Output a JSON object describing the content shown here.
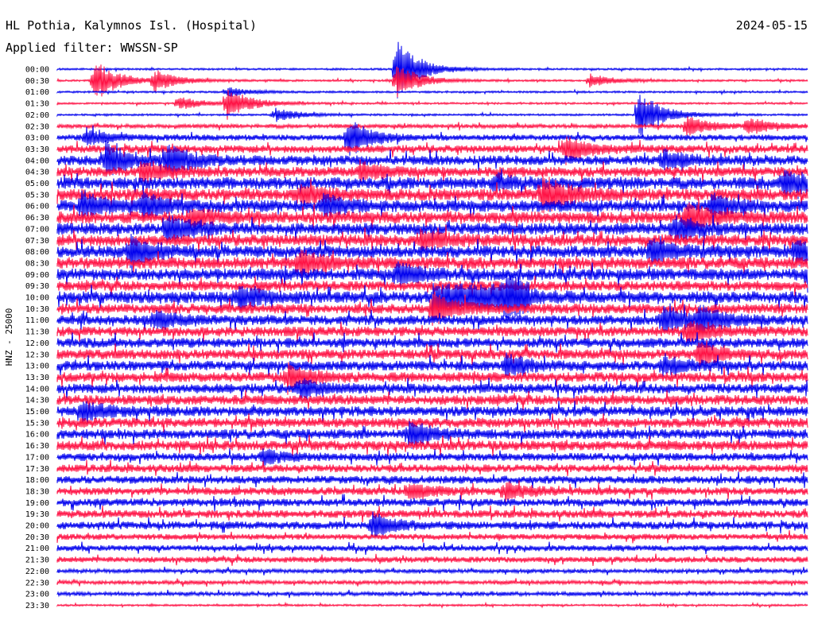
{
  "chart_data": {
    "type": "line",
    "title": "HL Pothia, Kalymnos Isl. (Hospital)",
    "date": "2024-05-15",
    "subtitle": "Applied filter: WWSSN-SP",
    "ylabel": "HNZ - 25000",
    "colors": [
      "#0000ee",
      "#ff1144"
    ],
    "categories": [
      "00:00",
      "00:30",
      "01:00",
      "01:30",
      "02:00",
      "02:30",
      "03:00",
      "03:30",
      "04:00",
      "04:30",
      "05:00",
      "05:30",
      "06:00",
      "06:30",
      "07:00",
      "07:30",
      "08:00",
      "08:30",
      "09:00",
      "09:30",
      "10:00",
      "10:30",
      "11:00",
      "11:30",
      "12:00",
      "12:30",
      "13:00",
      "13:30",
      "14:00",
      "14:30",
      "15:00",
      "15:30",
      "16:00",
      "16:30",
      "17:00",
      "17:30",
      "18:00",
      "18:30",
      "19:00",
      "19:30",
      "20:00",
      "20:30",
      "21:00",
      "21:30",
      "22:00",
      "22:30",
      "23:00",
      "23:30"
    ],
    "noise_level": [
      1,
      1,
      1,
      1,
      1,
      2,
      3,
      4,
      5,
      5,
      6,
      6,
      6,
      6,
      6,
      6,
      6,
      6,
      6,
      5,
      6,
      5,
      5,
      5,
      5,
      5,
      5,
      5,
      5,
      5,
      5,
      5,
      5,
      5,
      4,
      4,
      4,
      4,
      4,
      4,
      4,
      3,
      3,
      3,
      2,
      2,
      2,
      1
    ],
    "events": [
      {
        "row": 0,
        "minute": 14,
        "amplitude": 36
      },
      {
        "row": 1,
        "minute": 1.5,
        "amplitude": 26
      },
      {
        "row": 1,
        "minute": 14,
        "amplitude": 20
      },
      {
        "row": 1,
        "minute": 4,
        "amplitude": 12
      },
      {
        "row": 1,
        "minute": 22,
        "amplitude": 8
      },
      {
        "row": 2,
        "minute": 7,
        "amplitude": 6
      },
      {
        "row": 3,
        "minute": 7,
        "amplitude": 18
      },
      {
        "row": 3,
        "minute": 5,
        "amplitude": 8
      },
      {
        "row": 4,
        "minute": 24,
        "amplitude": 30
      },
      {
        "row": 4,
        "minute": 9,
        "amplitude": 8
      },
      {
        "row": 5,
        "minute": 26,
        "amplitude": 12
      },
      {
        "row": 5,
        "minute": 28.5,
        "amplitude": 10
      },
      {
        "row": 6,
        "minute": 12,
        "amplitude": 22
      },
      {
        "row": 6,
        "minute": 1.2,
        "amplitude": 10
      },
      {
        "row": 7,
        "minute": 21,
        "amplitude": 14
      },
      {
        "row": 8,
        "minute": 2,
        "amplitude": 18
      },
      {
        "row": 8,
        "minute": 4.5,
        "amplitude": 18
      },
      {
        "row": 8,
        "minute": 25,
        "amplitude": 10
      },
      {
        "row": 9,
        "minute": 3.5,
        "amplitude": 12
      },
      {
        "row": 9,
        "minute": 12.5,
        "amplitude": 10
      },
      {
        "row": 10,
        "minute": 30,
        "amplitude": 14
      },
      {
        "row": 10,
        "minute": 18,
        "amplitude": 8
      },
      {
        "row": 11,
        "minute": 20,
        "amplitude": 22
      },
      {
        "row": 11,
        "minute": 10,
        "amplitude": 10
      },
      {
        "row": 12,
        "minute": 1,
        "amplitude": 14
      },
      {
        "row": 12,
        "minute": 3.5,
        "amplitude": 14
      },
      {
        "row": 12,
        "minute": 11,
        "amplitude": 12
      },
      {
        "row": 12,
        "minute": 27,
        "amplitude": 12
      },
      {
        "row": 13,
        "minute": 26,
        "amplitude": 16
      },
      {
        "row": 13,
        "minute": 5.5,
        "amplitude": 8
      },
      {
        "row": 14,
        "minute": 4.5,
        "amplitude": 16
      },
      {
        "row": 14,
        "minute": 25.5,
        "amplitude": 14
      },
      {
        "row": 15,
        "minute": 15,
        "amplitude": 10
      },
      {
        "row": 16,
        "minute": 3,
        "amplitude": 18
      },
      {
        "row": 16,
        "minute": 24.5,
        "amplitude": 14
      },
      {
        "row": 16,
        "minute": 30.5,
        "amplitude": 12
      },
      {
        "row": 17,
        "minute": 10,
        "amplitude": 14
      },
      {
        "row": 18,
        "minute": 14,
        "amplitude": 12
      },
      {
        "row": 18,
        "minute": 31,
        "amplitude": 14
      },
      {
        "row": 20,
        "minute": 7.5,
        "amplitude": 14
      },
      {
        "row": 20,
        "minute": 18.5,
        "amplitude": 16
      },
      {
        "row": 21,
        "minute": 15.5,
        "amplitude": 18
      },
      {
        "row": 22,
        "minute": 4,
        "amplitude": 10
      },
      {
        "row": 22,
        "minute": 25,
        "amplitude": 16
      },
      {
        "row": 22,
        "minute": 26.5,
        "amplitude": 14
      },
      {
        "row": 23,
        "minute": 26,
        "amplitude": 12
      },
      {
        "row": 25,
        "minute": 26.5,
        "amplitude": 12
      },
      {
        "row": 26,
        "minute": 18.5,
        "amplitude": 12
      },
      {
        "row": 26,
        "minute": 25,
        "amplitude": 10
      },
      {
        "row": 27,
        "minute": 9.5,
        "amplitude": 14
      },
      {
        "row": 28,
        "minute": 10,
        "amplitude": 10
      },
      {
        "row": 30,
        "minute": 1,
        "amplitude": 12
      },
      {
        "row": 32,
        "minute": 14.5,
        "amplitude": 14
      },
      {
        "row": 34,
        "minute": 8.5,
        "amplitude": 8
      },
      {
        "row": 37,
        "minute": 14.5,
        "amplitude": 10
      },
      {
        "row": 37,
        "minute": 18.5,
        "amplitude": 10
      },
      {
        "row": 40,
        "minute": 13,
        "amplitude": 14
      }
    ],
    "long_bursts": [
      {
        "row": 20,
        "start_minute": 15.5,
        "end_minute": 19.5,
        "amplitude": 10
      }
    ],
    "xlim_minutes": [
      0,
      31
    ]
  }
}
